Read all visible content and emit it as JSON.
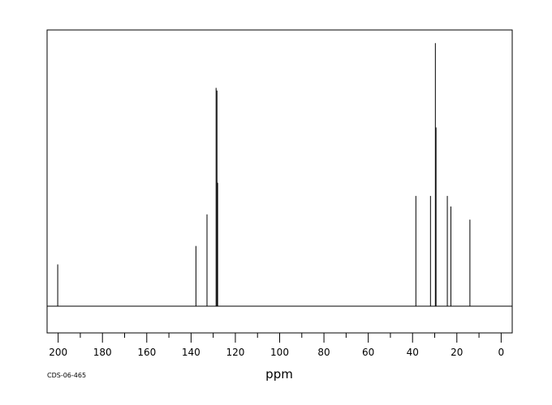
{
  "chart_data": {
    "type": "line",
    "title": "",
    "xlabel": "ppm",
    "ylabel": "",
    "xlim": [
      205,
      -5
    ],
    "ylim": [
      -0.1,
      1.05
    ],
    "x_reversed": true,
    "grid": false,
    "ticks": [
      {
        "value": 200,
        "label": "200"
      },
      {
        "value": 180,
        "label": "180"
      },
      {
        "value": 160,
        "label": "160"
      },
      {
        "value": 140,
        "label": "140"
      },
      {
        "value": 120,
        "label": "120"
      },
      {
        "value": 100,
        "label": "100"
      },
      {
        "value": 80,
        "label": "80"
      },
      {
        "value": 60,
        "label": "60"
      },
      {
        "value": 40,
        "label": "40"
      },
      {
        "value": 20,
        "label": "20"
      },
      {
        "value": 0,
        "label": "0"
      }
    ],
    "peaks": [
      {
        "ppm": 200.2,
        "intensity": 0.16
      },
      {
        "ppm": 137.8,
        "intensity": 0.23
      },
      {
        "ppm": 132.8,
        "intensity": 0.35
      },
      {
        "ppm": 128.7,
        "intensity": 0.83
      },
      {
        "ppm": 128.3,
        "intensity": 0.82
      },
      {
        "ppm": 128.0,
        "intensity": 0.47
      },
      {
        "ppm": 38.5,
        "intensity": 0.42
      },
      {
        "ppm": 31.9,
        "intensity": 0.42
      },
      {
        "ppm": 29.7,
        "intensity": 1.0
      },
      {
        "ppm": 29.4,
        "intensity": 0.68
      },
      {
        "ppm": 24.3,
        "intensity": 0.42
      },
      {
        "ppm": 22.7,
        "intensity": 0.38
      },
      {
        "ppm": 14.1,
        "intensity": 0.33
      }
    ]
  },
  "footer": {
    "code": "CDS-06-465"
  }
}
